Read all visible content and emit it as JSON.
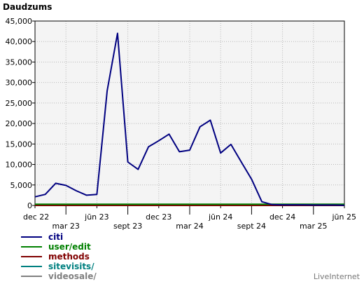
{
  "chart_data": {
    "type": "line",
    "title": "Daudzums",
    "x_tick_labels": [
      "dec 22",
      "mar 23",
      "jūn 23",
      "sept 23",
      "dec 23",
      "mar 24",
      "jūn 24",
      "sept 24",
      "dec 24",
      "mar 25",
      "jūn 25"
    ],
    "y_tick_labels": [
      "0",
      "5,000",
      "10,000",
      "15,000",
      "20,000",
      "25,000",
      "30,000",
      "35,000",
      "40,000",
      "45,000"
    ],
    "ylim": [
      0,
      45000
    ],
    "grid": true,
    "legend_position": "bottom-left",
    "series": [
      {
        "name": "citi",
        "color": "#000080",
        "values": [
          2100,
          2700,
          5400,
          4900,
          3600,
          2500,
          2700,
          28000,
          42000,
          10600,
          8800,
          14300,
          15800,
          17400,
          13100,
          13500,
          19200,
          20800,
          12800,
          14900,
          10600,
          6400,
          900,
          200,
          150,
          150,
          150,
          100,
          100,
          100,
          50
        ]
      },
      {
        "name": "user/edit",
        "color": "#008000",
        "values": [
          300,
          300,
          300,
          300,
          300,
          300,
          300,
          300,
          300,
          300,
          300,
          300,
          300,
          300,
          300,
          300,
          300,
          300,
          300,
          300,
          300,
          300,
          300,
          300,
          300,
          300,
          300,
          300,
          300,
          300,
          300
        ]
      },
      {
        "name": "methods",
        "color": "#800000",
        "values": [
          0,
          0,
          0,
          0,
          0,
          0,
          0,
          0,
          0,
          0,
          0,
          0,
          0,
          0,
          0,
          0,
          0,
          0,
          0,
          0,
          0,
          0,
          0,
          0,
          0,
          0,
          0,
          0,
          0,
          0,
          0
        ]
      },
      {
        "name": "sitevisits/",
        "color": "#008080",
        "values": [
          0,
          0,
          0,
          0,
          0,
          0,
          0,
          0,
          0,
          0,
          0,
          0,
          0,
          0,
          0,
          0,
          0,
          0,
          0,
          0,
          0,
          0,
          0,
          0,
          0,
          0,
          0,
          0,
          0,
          0,
          0
        ]
      },
      {
        "name": "videosale/",
        "color": "#808080",
        "values": [
          0,
          0,
          0,
          0,
          0,
          0,
          0,
          0,
          0,
          0,
          0,
          0,
          0,
          0,
          0,
          0,
          0,
          0,
          0,
          0,
          0,
          0,
          0,
          0,
          0,
          0,
          0,
          0,
          0,
          0,
          0
        ]
      }
    ]
  },
  "brand": "LiveInternet"
}
